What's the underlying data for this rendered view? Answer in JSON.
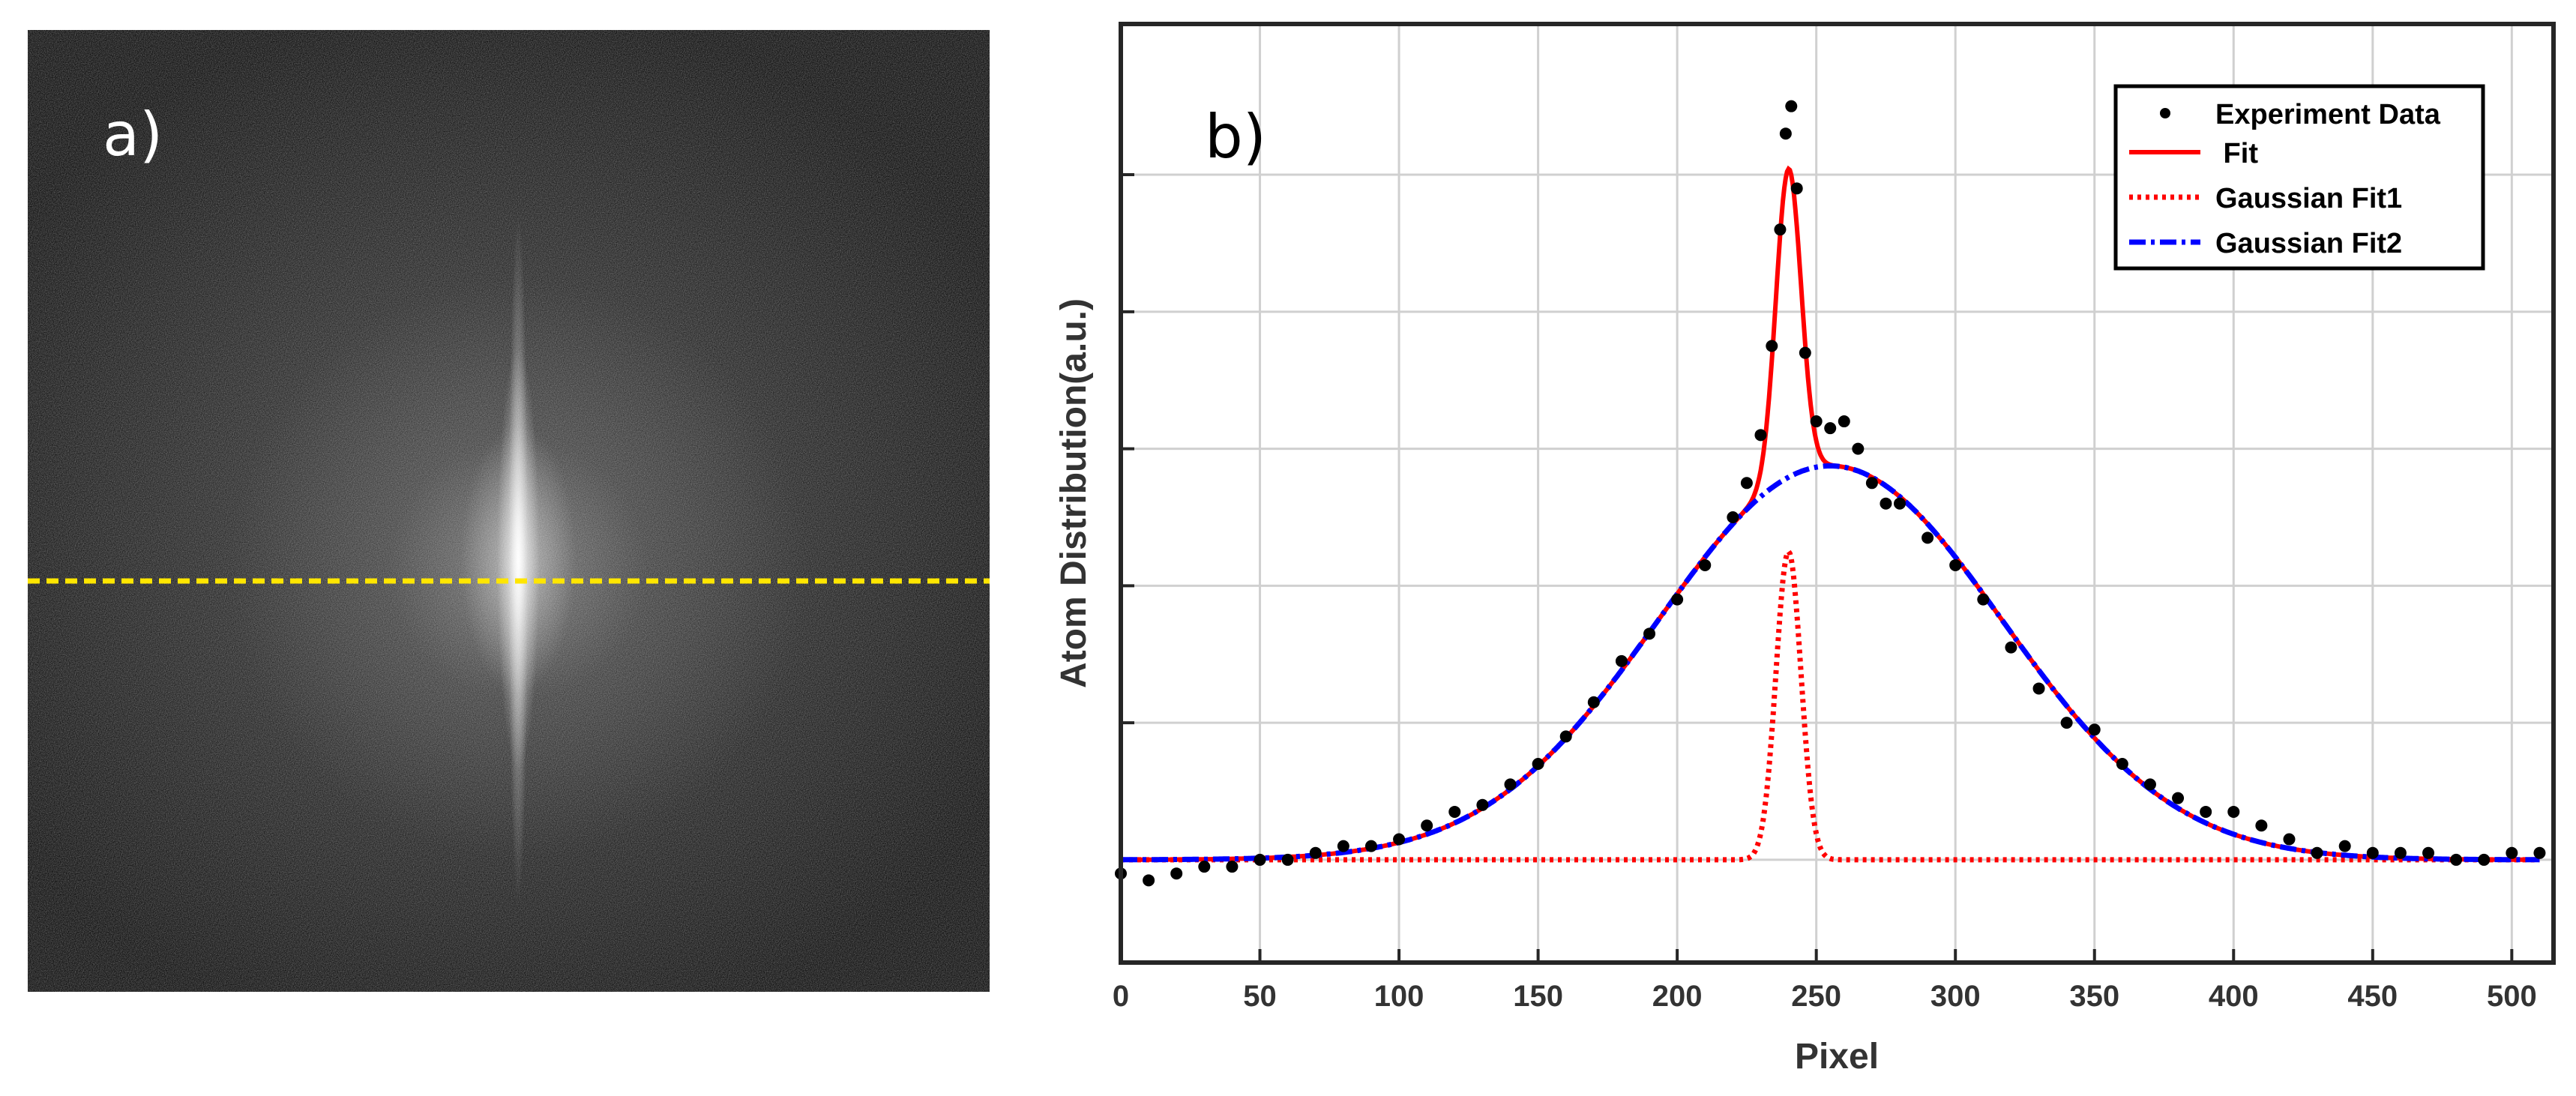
{
  "panel_a": {
    "label": "a)",
    "description_line_color": "#ffe600"
  },
  "chart_data": {
    "type": "scatter",
    "panel_label": "b)",
    "xlabel": "Pixel",
    "ylabel": "Atom Distribution(a.u.)",
    "xlim": [
      0,
      515
    ],
    "ylim": [
      -0.15,
      1.22
    ],
    "x_ticks": [
      0,
      50,
      100,
      150,
      200,
      250,
      300,
      350,
      400,
      450,
      500
    ],
    "y_grid": [
      0.0,
      0.2,
      0.4,
      0.6,
      0.8,
      1.0
    ],
    "grid": true,
    "y_tick_labels_shown": false,
    "legend": {
      "position": "top-right",
      "entries": [
        {
          "label": "Experiment Data",
          "style": "dot",
          "color": "#000000"
        },
        {
          "label": " Fit",
          "style": "solid",
          "color": "#ff0000"
        },
        {
          "label": "Gaussian Fit1",
          "style": "dotted",
          "color": "#ff0000"
        },
        {
          "label": "Gaussian Fit2",
          "style": "dashdot",
          "color": "#0000ff"
        }
      ]
    },
    "model": {
      "baseline": 0.0,
      "gaussian1": {
        "amplitude": 0.45,
        "center": 240,
        "sigma": 4.5
      },
      "gaussian2": {
        "amplitude": 0.575,
        "center": 255,
        "sigma": 62
      }
    },
    "series": [
      {
        "name": "Experiment Data",
        "x": [
          0,
          10,
          20,
          30,
          40,
          50,
          60,
          70,
          80,
          90,
          100,
          110,
          120,
          130,
          140,
          150,
          160,
          170,
          180,
          190,
          200,
          210,
          220,
          225,
          230,
          234,
          237,
          239,
          241,
          243,
          246,
          250,
          255,
          260,
          265,
          270,
          275,
          280,
          290,
          300,
          310,
          320,
          330,
          340,
          350,
          360,
          370,
          380,
          390,
          400,
          410,
          420,
          430,
          440,
          450,
          460,
          470,
          480,
          490,
          500,
          510
        ],
        "y": [
          -0.02,
          -0.03,
          -0.02,
          -0.01,
          -0.01,
          0.0,
          0.0,
          0.01,
          0.02,
          0.02,
          0.03,
          0.05,
          0.07,
          0.08,
          0.11,
          0.14,
          0.18,
          0.23,
          0.29,
          0.33,
          0.38,
          0.43,
          0.5,
          0.55,
          0.62,
          0.75,
          0.92,
          1.06,
          1.1,
          0.98,
          0.74,
          0.64,
          0.63,
          0.64,
          0.6,
          0.55,
          0.52,
          0.52,
          0.47,
          0.43,
          0.38,
          0.31,
          0.25,
          0.2,
          0.19,
          0.14,
          0.11,
          0.09,
          0.07,
          0.07,
          0.05,
          0.03,
          0.01,
          0.02,
          0.01,
          0.01,
          0.01,
          0.0,
          0.0,
          0.01,
          0.01
        ]
      },
      {
        "name": "Fit",
        "derived_from": "gaussian1 + gaussian2"
      },
      {
        "name": "Gaussian Fit1",
        "derived_from": "gaussian1"
      },
      {
        "name": "Gaussian Fit2",
        "derived_from": "gaussian2"
      }
    ]
  }
}
